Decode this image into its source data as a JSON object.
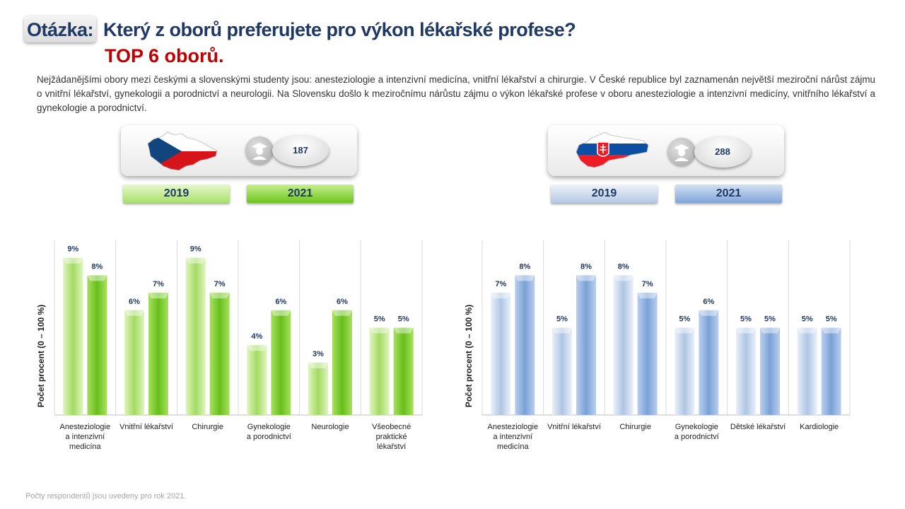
{
  "header": {
    "question_label": "Otázka:",
    "question_text": "Který z oborů preferujete pro výkon lékařské profese?",
    "subtitle": "TOP 6 oborů."
  },
  "intro_text": "Nejžádanějšími obory mezi českými a slovenskými studenty jsou: anesteziologie a intenzivní medicína, vnitřní lékařství a chirurgie. V České republice byl zaznamenán největší meziroční nárůst zájmu o vnitřní lékařství, gynekologii a porodnictví a neurologii. Na Slovensku došlo k meziročnímu nárůstu zájmu o výkon lékařské profese v oboru anesteziologie a intenzivní medicíny, vnitřního lékařství a gynekologie a porodnictví.",
  "cz_panel": {
    "respondents": "187",
    "year_2019": "2019",
    "year_2021": "2021",
    "flag_icon": "czech-map-flag-icon",
    "person_icon": "graduate-icon"
  },
  "sk_panel": {
    "respondents": "288",
    "year_2019": "2019",
    "year_2021": "2021",
    "flag_icon": "slovak-map-flag-icon",
    "person_icon": "graduate-icon"
  },
  "footnote": "Počty respondentů jsou uvedeny pro rok 2021.",
  "colors": {
    "green_2019": "#a9e06b",
    "green_2021": "#6cc51d",
    "blue_2019": "#b4c8e2",
    "blue_2021": "#7fa5d8",
    "label": "#1f3864",
    "accent_red": "#c00000"
  },
  "chart_data": [
    {
      "type": "bar",
      "ylabel": "Počet procent  (0 – 100 %)",
      "ylim": [
        0,
        10
      ],
      "categories": [
        [
          "Anesteziologie",
          "a intenzivní",
          "medicína"
        ],
        [
          "Vnitřní lékařství"
        ],
        [
          "Chirurgie"
        ],
        [
          "Gynekologie",
          "a porodnictví"
        ],
        [
          "Neurologie"
        ],
        [
          "Všeobecné",
          "praktické",
          "lékařství"
        ]
      ],
      "series": [
        {
          "values": [
            9,
            6,
            9,
            4,
            3,
            5
          ],
          "labels": [
            "9%",
            "6%",
            "9%",
            "4%",
            "3%",
            "5%"
          ]
        },
        {
          "values": [
            8,
            7,
            7,
            6,
            6,
            5
          ],
          "labels": [
            "8%",
            "7%",
            "7%",
            "6%",
            "6%",
            "5%"
          ]
        }
      ]
    },
    {
      "type": "bar",
      "ylabel": "Počet procent  (0 – 100 %)",
      "ylim": [
        0,
        10
      ],
      "categories": [
        [
          "Anesteziologie",
          "a intenzivní",
          "medicína"
        ],
        [
          "Vnitřní lékařství"
        ],
        [
          "Chirurgie"
        ],
        [
          "Gynekologie",
          "a porodnictví"
        ],
        [
          "Dětské lékařství"
        ],
        [
          "Kardiologie"
        ]
      ],
      "series": [
        {
          "values": [
            7,
            5,
            8,
            5,
            5,
            5
          ],
          "labels": [
            "7%",
            "5%",
            "8%",
            "5%",
            "5%",
            "5%"
          ]
        },
        {
          "values": [
            8,
            8,
            7,
            6,
            5,
            5
          ],
          "labels": [
            "8%",
            "8%",
            "7%",
            "6%",
            "5%",
            "5%"
          ]
        }
      ]
    }
  ]
}
